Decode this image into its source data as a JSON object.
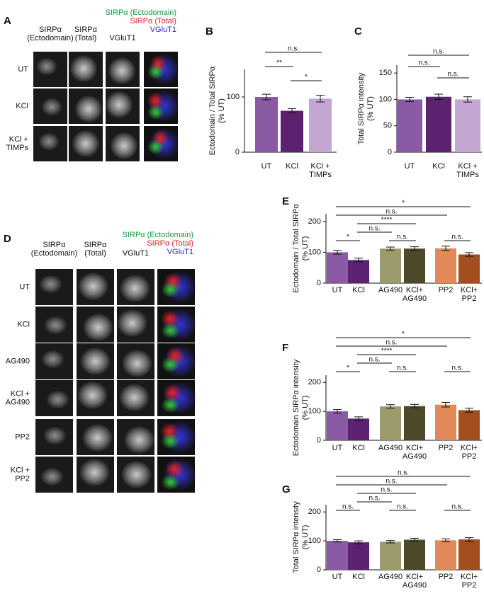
{
  "image_panels": [
    {
      "label": "A",
      "columns": [
        [
          "SIRPα",
          "(Ectodomain)"
        ],
        [
          "SIRPα",
          "(Total)"
        ],
        [
          "VGluT1"
        ]
      ],
      "merge_legend": [
        "SIRPα (Ectodomain)",
        "SIRPα (Total)",
        "VGluT1"
      ],
      "rows": [
        [
          "UT"
        ],
        [
          "KCl"
        ],
        [
          "KCl +",
          "TIMPs"
        ]
      ]
    },
    {
      "label": "D",
      "columns": [
        [
          "SIRPα",
          "(Ectodomain)"
        ],
        [
          "SIRPα",
          "(Total)"
        ],
        [
          "VGluT1"
        ]
      ],
      "merge_legend": [
        "SIRPα (Ectodomain)",
        "SIRPα (Total)",
        "VGluT1"
      ],
      "rows": [
        [
          "UT"
        ],
        [
          "KCl"
        ],
        [
          "AG490"
        ],
        [
          "KCl +",
          "AG490"
        ],
        [
          "PP2"
        ],
        [
          "KCl +",
          "PP2"
        ]
      ]
    }
  ],
  "chart_data": [
    {
      "type": "bar",
      "label": "B",
      "ylabel": [
        "Ectodomain / Total SIRPα",
        "(% UT)"
      ],
      "categories": [
        [
          "UT"
        ],
        [
          "KCl"
        ],
        [
          "KCl +",
          "TIMPs"
        ]
      ],
      "values": [
        100,
        75,
        97
      ],
      "errors": [
        5,
        4,
        6
      ],
      "colors": [
        "#8b5aa5",
        "#5c2170",
        "#c3a6d1"
      ],
      "ylim": [
        0,
        150
      ],
      "yticks": [
        0,
        100
      ],
      "comparisons": [
        {
          "bars": [
            0,
            2
          ],
          "label": "n.s."
        },
        {
          "bars": [
            0,
            1
          ],
          "label": "**"
        },
        {
          "bars": [
            1,
            2
          ],
          "label": "*"
        }
      ]
    },
    {
      "type": "bar",
      "label": "C",
      "ylabel": [
        "Total SIRPα intensity",
        "(% UT)"
      ],
      "categories": [
        [
          "UT"
        ],
        [
          "KCl"
        ],
        [
          "KCl +",
          "TIMPs"
        ]
      ],
      "values": [
        100,
        105,
        100
      ],
      "errors": [
        4,
        5,
        5
      ],
      "colors": [
        "#8b5aa5",
        "#5c2170",
        "#c3a6d1"
      ],
      "ylim": [
        0,
        165
      ],
      "yticks": [
        0,
        50,
        100,
        150
      ],
      "comparisons": [
        {
          "bars": [
            0,
            2
          ],
          "label": "n.s."
        },
        {
          "bars": [
            0,
            1
          ],
          "label": "n.s."
        },
        {
          "bars": [
            1,
            2
          ],
          "label": "n.s."
        }
      ]
    },
    {
      "type": "bar",
      "label": "E",
      "ylabel": [
        "Ectodomain / Total SIRPα",
        "(% UT)"
      ],
      "categories": [
        [
          "UT"
        ],
        [
          "KCl"
        ],
        [
          "AG490"
        ],
        [
          "KCl+",
          "AG490"
        ],
        [
          "PP2"
        ],
        [
          "KCl+",
          "PP2"
        ]
      ],
      "values": [
        100,
        75,
        112,
        112,
        113,
        93
      ],
      "errors": [
        6,
        6,
        5,
        6,
        7,
        6
      ],
      "colors": [
        "#8b5aa5",
        "#5c2170",
        "#9c9b6b",
        "#4d4a2a",
        "#e08a5a",
        "#a24e1e"
      ],
      "ylim": [
        0,
        225
      ],
      "yticks": [
        0,
        100,
        200
      ],
      "comparisons": [
        {
          "bars": [
            0,
            5
          ],
          "label": "*"
        },
        {
          "bars": [
            0,
            4
          ],
          "label": "n.s."
        },
        {
          "bars": [
            1,
            3
          ],
          "label": "****"
        },
        {
          "bars": [
            1,
            2
          ],
          "label": "n.s."
        },
        {
          "bars": [
            0,
            1
          ],
          "label": "*"
        },
        {
          "bars": [
            2,
            3
          ],
          "label": "n.s."
        },
        {
          "bars": [
            4,
            5
          ],
          "label": "n.s."
        }
      ]
    },
    {
      "type": "bar",
      "label": "F",
      "ylabel": [
        "Ectodomain SIRPα intensity",
        "(% UT)"
      ],
      "categories": [
        [
          "UT"
        ],
        [
          "KCl"
        ],
        [
          "AG490"
        ],
        [
          "KCl+",
          "AG490"
        ],
        [
          "PP2"
        ],
        [
          "KCl+",
          "PP2"
        ]
      ],
      "values": [
        100,
        75,
        117,
        118,
        123,
        104
      ],
      "errors": [
        6,
        6,
        6,
        6,
        8,
        7
      ],
      "colors": [
        "#8b5aa5",
        "#5c2170",
        "#9c9b6b",
        "#4d4a2a",
        "#e08a5a",
        "#a24e1e"
      ],
      "ylim": [
        0,
        225
      ],
      "yticks": [
        0,
        100,
        200
      ],
      "comparisons": [
        {
          "bars": [
            0,
            5
          ],
          "label": "*"
        },
        {
          "bars": [
            0,
            4
          ],
          "label": "n.s."
        },
        {
          "bars": [
            1,
            3
          ],
          "label": "****"
        },
        {
          "bars": [
            1,
            2
          ],
          "label": "n.s."
        },
        {
          "bars": [
            0,
            1
          ],
          "label": "*"
        },
        {
          "bars": [
            2,
            3
          ],
          "label": "n.s."
        },
        {
          "bars": [
            4,
            5
          ],
          "label": "n.s."
        }
      ]
    },
    {
      "type": "bar",
      "label": "G",
      "ylabel": [
        "Total SIRPα intensity",
        "(% UT)"
      ],
      "categories": [
        [
          "UT"
        ],
        [
          "KCl"
        ],
        [
          "AG490"
        ],
        [
          "KCl+",
          "AG490"
        ],
        [
          "PP2"
        ],
        [
          "KCl+",
          "PP2"
        ]
      ],
      "values": [
        100,
        95,
        97,
        104,
        102,
        105
      ],
      "errors": [
        4,
        5,
        4,
        5,
        5,
        6
      ],
      "colors": [
        "#8b5aa5",
        "#5c2170",
        "#9c9b6b",
        "#4d4a2a",
        "#e08a5a",
        "#a24e1e"
      ],
      "ylim": [
        0,
        225
      ],
      "yticks": [
        0,
        100,
        200
      ],
      "comparisons": [
        {
          "bars": [
            0,
            5
          ],
          "label": "n.s."
        },
        {
          "bars": [
            0,
            4
          ],
          "label": "n.s."
        },
        {
          "bars": [
            1,
            3
          ],
          "label": "n.s."
        },
        {
          "bars": [
            1,
            2
          ],
          "label": "n.s."
        },
        {
          "bars": [
            0,
            1
          ],
          "label": "n.s."
        },
        {
          "bars": [
            2,
            3
          ],
          "label": "n.s."
        },
        {
          "bars": [
            4,
            5
          ],
          "label": "n.s."
        }
      ]
    }
  ]
}
